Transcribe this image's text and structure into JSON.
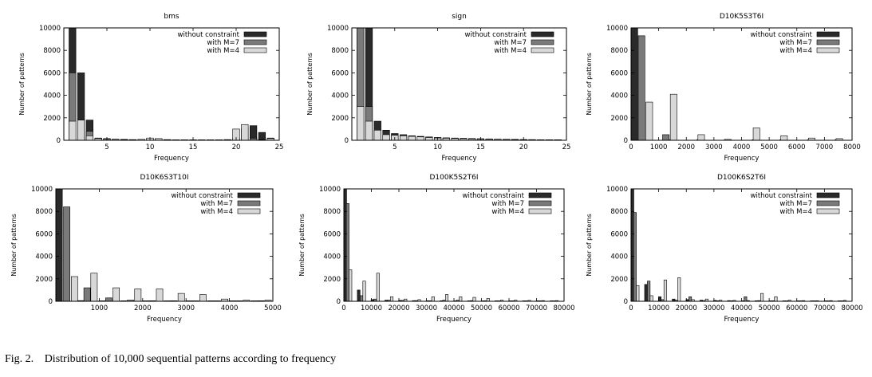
{
  "caption": {
    "label": "Fig. 2.",
    "text": "Distribution of 10,000 sequential patterns according to frequency"
  },
  "colors": {
    "without_constraint": "#2a2a2a",
    "with_M7": "#7a7a7a",
    "with_M4": "#d8d8d8"
  },
  "chart_data": [
    {
      "type": "bar",
      "title": "bms",
      "xlabel": "Frequency",
      "ylabel": "Number of patterns",
      "xlim": [
        0,
        25
      ],
      "ylim": [
        0,
        10000
      ],
      "xticks": [
        5,
        10,
        15,
        20,
        25
      ],
      "yticks": [
        0,
        2000,
        4000,
        6000,
        8000,
        10000
      ],
      "bin_width": 0.8,
      "legend": "top-right",
      "series": [
        {
          "name": "without constraint",
          "x": [
            1,
            2,
            3,
            4,
            5,
            6,
            7,
            8,
            9,
            10,
            11,
            12,
            13,
            14,
            15,
            16,
            17,
            18,
            19,
            20,
            21,
            22,
            23,
            24
          ],
          "values": [
            10000,
            6000,
            1800,
            200,
            150,
            100,
            80,
            60,
            50,
            60,
            150,
            50,
            40,
            30,
            30,
            20,
            20,
            20,
            60,
            70,
            1100,
            1300,
            700,
            200
          ]
        },
        {
          "name": "with M=7",
          "x": [
            1,
            2,
            3,
            4,
            5,
            6,
            7,
            8,
            9,
            10,
            11,
            12,
            20,
            21,
            22,
            23,
            24
          ],
          "values": [
            6000,
            1800,
            800,
            100,
            80,
            60,
            50,
            40,
            60,
            100,
            100,
            50,
            200,
            900,
            200,
            60,
            50
          ]
        },
        {
          "name": "with M=4",
          "x": [
            1,
            2,
            3,
            4,
            5,
            6,
            7,
            8,
            9,
            10,
            11,
            12,
            20,
            21,
            22,
            23,
            24
          ],
          "values": [
            1700,
            1800,
            400,
            150,
            100,
            80,
            60,
            50,
            80,
            200,
            150,
            60,
            1000,
            1400,
            100,
            50,
            150
          ]
        }
      ]
    },
    {
      "type": "bar",
      "title": "sign",
      "xlabel": "Frequency",
      "ylabel": "Number of patterns",
      "xlim": [
        0,
        25
      ],
      "ylim": [
        0,
        10000
      ],
      "xticks": [
        5,
        10,
        15,
        20,
        25
      ],
      "yticks": [
        0,
        2000,
        4000,
        6000,
        8000,
        10000
      ],
      "bin_width": 0.8,
      "legend": "top-right",
      "series": [
        {
          "name": "without constraint",
          "x": [
            1,
            2,
            3,
            4,
            5,
            6,
            7,
            8,
            9,
            10,
            11,
            12,
            13,
            14,
            15,
            16,
            17,
            18,
            19,
            20,
            21,
            22,
            23,
            24
          ],
          "values": [
            10000,
            10000,
            1700,
            900,
            600,
            500,
            400,
            350,
            300,
            250,
            220,
            200,
            180,
            160,
            140,
            120,
            100,
            90,
            80,
            70,
            60,
            50,
            40,
            40
          ]
        },
        {
          "name": "with M=7",
          "x": [
            1,
            2,
            3,
            4,
            5,
            6,
            7,
            8,
            9,
            10,
            11,
            12,
            13,
            14,
            15,
            16,
            17,
            18,
            19,
            20,
            21,
            22,
            23,
            24
          ],
          "values": [
            10000,
            3000,
            200,
            100,
            80,
            70,
            60,
            50,
            40,
            40,
            30,
            30,
            30,
            20,
            20,
            20,
            20,
            20,
            20,
            20,
            20,
            20,
            20,
            20
          ]
        },
        {
          "name": "with M=4",
          "x": [
            1,
            2,
            3,
            4,
            5,
            6,
            7,
            8,
            9,
            10,
            11,
            12,
            13,
            14,
            15,
            16,
            17,
            18,
            19,
            20,
            21,
            22,
            23,
            24
          ],
          "values": [
            3000,
            1700,
            900,
            500,
            450,
            400,
            350,
            300,
            250,
            200,
            180,
            160,
            140,
            120,
            100,
            90,
            80,
            70,
            60,
            50,
            40,
            40,
            30,
            30
          ]
        }
      ]
    },
    {
      "type": "bar",
      "title": "D10K5S3T6I",
      "xlabel": "Frequency",
      "ylabel": "Number of patterns",
      "xlim": [
        0,
        8000
      ],
      "ylim": [
        0,
        10000
      ],
      "xticks": [
        0,
        1000,
        2000,
        3000,
        4000,
        5000,
        6000,
        7000,
        8000
      ],
      "yticks": [
        0,
        2000,
        4000,
        6000,
        8000,
        10000
      ],
      "bin_width": 240,
      "legend": "top-right",
      "series": [
        {
          "name": "without constraint",
          "x": [
            100,
            1500,
            2500,
            3500,
            4500,
            5500,
            6500,
            7500
          ],
          "values": [
            10000,
            30,
            20,
            20,
            20,
            20,
            20,
            20
          ]
        },
        {
          "name": "with M=7",
          "x": [
            380,
            1260
          ],
          "values": [
            9300,
            500
          ]
        },
        {
          "name": "with M=4",
          "x": [
            660,
            1540,
            2540,
            3500,
            4540,
            5540,
            6540,
            7540
          ],
          "values": [
            3400,
            4100,
            500,
            80,
            1100,
            400,
            200,
            150
          ]
        }
      ]
    },
    {
      "type": "bar",
      "title": "D10K6S3T10I",
      "xlabel": "Frequency",
      "ylabel": "Number of patterns",
      "xlim": [
        0,
        5000
      ],
      "ylim": [
        0,
        10000
      ],
      "xticks": [
        1000,
        2000,
        3000,
        4000,
        5000
      ],
      "yticks": [
        0,
        2000,
        4000,
        6000,
        8000,
        10000
      ],
      "bin_width": 150,
      "legend": "top-right",
      "series": [
        {
          "name": "without constraint",
          "x": [
            75,
            570,
            1070,
            1570,
            2070,
            2570,
            3070,
            3570,
            4070,
            4570
          ],
          "values": [
            10000,
            60,
            40,
            40,
            30,
            30,
            20,
            20,
            20,
            20
          ]
        },
        {
          "name": "with M=7",
          "x": [
            250,
            720,
            1220,
            1720,
            2220,
            2720,
            3220,
            3720,
            4220,
            4720
          ],
          "values": [
            8400,
            1200,
            300,
            100,
            50,
            50,
            40,
            40,
            40,
            50
          ]
        },
        {
          "name": "with M=4",
          "x": [
            430,
            880,
            1390,
            1890,
            2390,
            2890,
            3390,
            3890,
            4390,
            4890
          ],
          "values": [
            2200,
            2500,
            1200,
            1100,
            1100,
            700,
            600,
            200,
            100,
            100
          ]
        }
      ]
    },
    {
      "type": "bar",
      "title": "D100K5S2T6I",
      "xlabel": "Frequency",
      "ylabel": "Number of patterns",
      "xlim": [
        0,
        80000
      ],
      "ylim": [
        0,
        10000
      ],
      "xticks": [
        0,
        10000,
        20000,
        30000,
        40000,
        50000,
        60000,
        70000,
        80000
      ],
      "yticks": [
        0,
        2000,
        4000,
        6000,
        8000,
        10000
      ],
      "bin_width": 1000,
      "legend": "top-right",
      "series": [
        {
          "name": "without constraint",
          "x": [
            400,
            5400,
            10400,
            15400,
            20400,
            25400,
            30400,
            35400,
            40400,
            45400,
            50400,
            55400,
            60400,
            65400,
            70400,
            75400
          ],
          "values": [
            10000,
            1000,
            150,
            100,
            80,
            60,
            50,
            50,
            40,
            40,
            40,
            30,
            30,
            30,
            30,
            30
          ]
        },
        {
          "name": "with M=7",
          "x": [
            1400,
            6400,
            11400,
            16400,
            21400,
            26400,
            31400,
            36400,
            41400,
            46400,
            51400,
            56400,
            61400,
            66400,
            71400,
            76400
          ],
          "values": [
            8700,
            500,
            200,
            100,
            80,
            60,
            50,
            100,
            100,
            60,
            50,
            40,
            40,
            30,
            30,
            30
          ]
        },
        {
          "name": "with M=4",
          "x": [
            2400,
            7400,
            12400,
            17400,
            22400,
            27400,
            32400,
            37400,
            42400,
            47400,
            52400,
            57400,
            62400,
            67400,
            72400,
            77400
          ],
          "values": [
            2800,
            1800,
            2500,
            400,
            200,
            150,
            400,
            600,
            400,
            350,
            250,
            100,
            100,
            80,
            60,
            60
          ]
        }
      ]
    },
    {
      "type": "bar",
      "title": "D100K6S2T6I",
      "xlabel": "Frequency",
      "ylabel": "Number of patterns",
      "xlim": [
        0,
        80000
      ],
      "ylim": [
        0,
        10000
      ],
      "xticks": [
        0,
        10000,
        20000,
        30000,
        40000,
        50000,
        60000,
        70000,
        80000
      ],
      "yticks": [
        0,
        2000,
        4000,
        6000,
        8000,
        10000
      ],
      "bin_width": 1000,
      "legend": "top-right",
      "series": [
        {
          "name": "without constraint",
          "x": [
            400,
            5400,
            10400,
            15400,
            20400,
            25400,
            30400,
            35400,
            40400,
            45400,
            50400,
            55400,
            60400,
            65400,
            70400,
            75400
          ],
          "values": [
            10000,
            1500,
            400,
            200,
            150,
            100,
            80,
            60,
            50,
            50,
            40,
            40,
            30,
            30,
            30,
            30
          ]
        },
        {
          "name": "with M=7",
          "x": [
            1400,
            6400,
            11400,
            16400,
            21400,
            26400,
            31400,
            36400,
            41400,
            46400,
            51400,
            56400,
            61400,
            66400,
            71400,
            76400
          ],
          "values": [
            7900,
            1800,
            150,
            100,
            400,
            60,
            50,
            50,
            400,
            60,
            50,
            40,
            40,
            30,
            30,
            30
          ]
        },
        {
          "name": "with M=4",
          "x": [
            2400,
            7400,
            12400,
            17400,
            22400,
            27400,
            32400,
            37400,
            42400,
            47400,
            52400,
            57400,
            62400,
            67400,
            72400,
            77400
          ],
          "values": [
            1400,
            500,
            1900,
            2100,
            150,
            200,
            100,
            80,
            60,
            700,
            400,
            100,
            60,
            50,
            60,
            80
          ]
        }
      ]
    }
  ]
}
